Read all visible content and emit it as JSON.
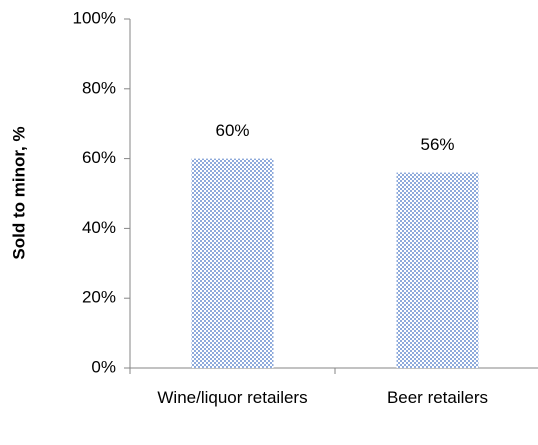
{
  "chart_data": {
    "type": "bar",
    "y_label": "Sold to minor, %",
    "categories": [
      "Wine/liquor retailers",
      "Beer retailers"
    ],
    "values": [
      60,
      56
    ],
    "value_labels": [
      "60%",
      "56%"
    ],
    "color": "#8eaadb",
    "ylim": [
      0,
      100
    ],
    "yticks": [
      {
        "value": 0,
        "label": "0%"
      },
      {
        "value": 20,
        "label": "20%"
      },
      {
        "value": 40,
        "label": "40%"
      },
      {
        "value": 60,
        "label": "60%"
      },
      {
        "value": 80,
        "label": "80%"
      },
      {
        "value": 100,
        "label": "100%"
      }
    ]
  }
}
